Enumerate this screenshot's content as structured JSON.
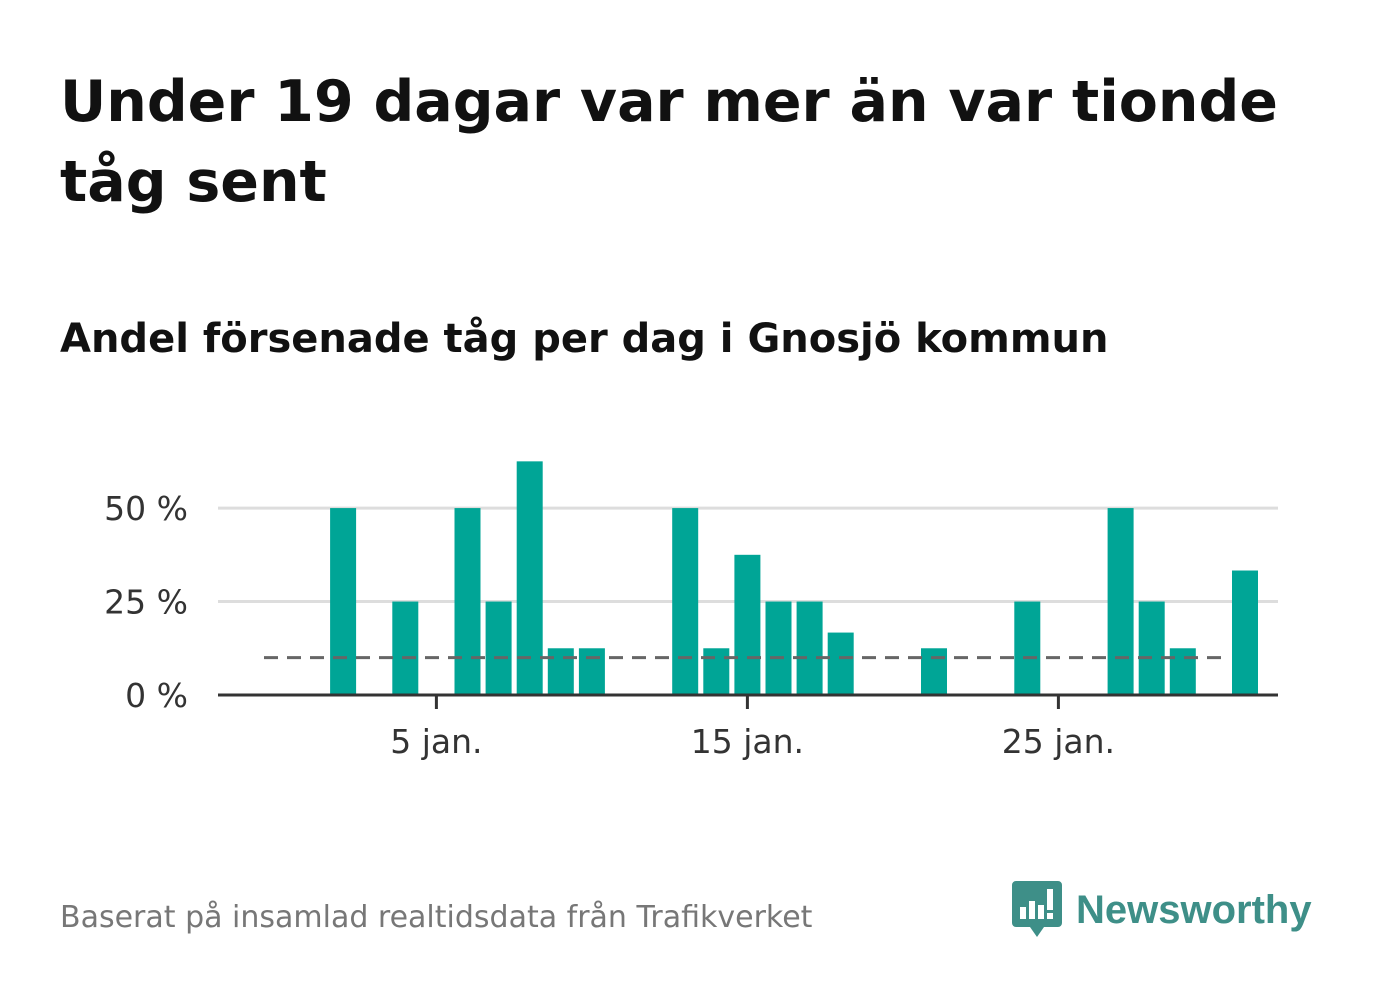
{
  "title": "Under 19 dagar var mer än var tionde tåg sent",
  "subtitle": "Andel försenade tåg per dag i Gnosjö kommun",
  "source": "Baserat på insamlad realtidsdata från Trafikverket",
  "logo_text": "Newsworthy",
  "colors": {
    "bar": "#00a596",
    "reference_line": "#666666",
    "grid": "#dddddd",
    "axis": "#333333",
    "logo": "#3e8f88"
  },
  "chart_data": {
    "type": "bar",
    "x_unit": "day of January",
    "categories": [
      1,
      2,
      3,
      4,
      5,
      6,
      7,
      8,
      9,
      10,
      11,
      12,
      13,
      14,
      15,
      16,
      17,
      18,
      19,
      20,
      21,
      22,
      23,
      24,
      25,
      26,
      27,
      28,
      29,
      30,
      31
    ],
    "values": [
      null,
      50,
      null,
      25,
      null,
      50,
      25,
      62.5,
      12.5,
      12.5,
      null,
      null,
      50,
      12.5,
      37.5,
      25,
      25,
      16.7,
      null,
      null,
      12.5,
      null,
      null,
      25,
      null,
      null,
      50,
      25,
      12.5,
      null,
      33.3
    ],
    "reference_line": 10,
    "ylim": [
      0,
      65
    ],
    "y_ticks": [
      {
        "value": 0,
        "label": "0 %"
      },
      {
        "value": 25,
        "label": "25 %"
      },
      {
        "value": 50,
        "label": "50 %"
      }
    ],
    "x_ticks": [
      {
        "value": 5,
        "label": "5 jan."
      },
      {
        "value": 15,
        "label": "15 jan."
      },
      {
        "value": 25,
        "label": "25 jan."
      }
    ],
    "grid": true
  }
}
